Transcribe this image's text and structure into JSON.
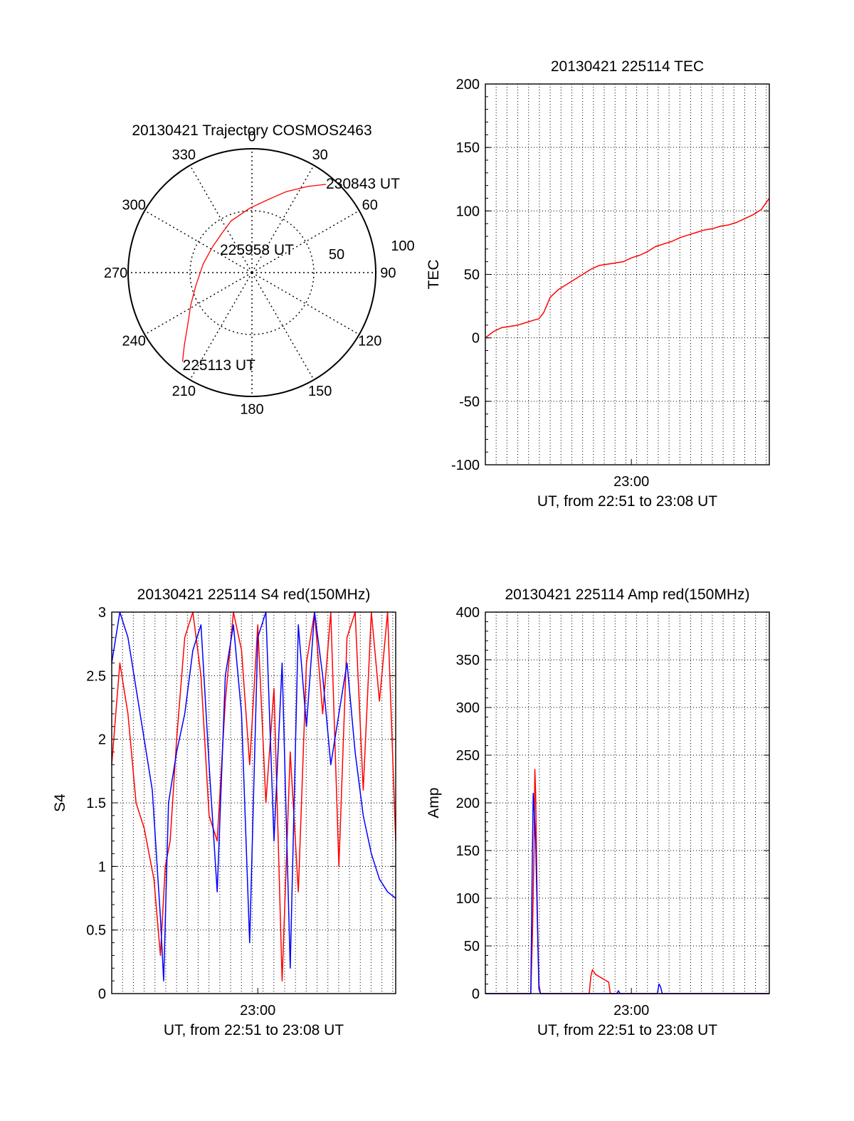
{
  "chart_data": [
    {
      "type": "polar",
      "title": "20130421 Trajectory COSMOS2463",
      "angle_labels": [
        "0",
        "30",
        "60",
        "90",
        "120",
        "150",
        "180",
        "210",
        "240",
        "270",
        "300",
        "330"
      ],
      "ring_labels": [
        "50",
        "100"
      ],
      "ring_elevations": [
        50,
        100
      ],
      "track": {
        "color": "#ff0000",
        "points": [
          {
            "azimuth": 218,
            "radius": 91
          },
          {
            "azimuth": 223,
            "radius": 80
          },
          {
            "azimuth": 230,
            "radius": 68
          },
          {
            "azimuth": 242,
            "radius": 56
          },
          {
            "azimuth": 258,
            "radius": 46
          },
          {
            "azimuth": 280,
            "radius": 40
          },
          {
            "azimuth": 303,
            "radius": 38
          },
          {
            "azimuth": 323,
            "radius": 40
          },
          {
            "azimuth": 338,
            "radius": 45
          },
          {
            "azimuth": 358,
            "radius": 52
          },
          {
            "azimuth": 12,
            "radius": 60
          },
          {
            "azimuth": 23,
            "radius": 71
          },
          {
            "azimuth": 33,
            "radius": 83
          },
          {
            "azimuth": 40,
            "radius": 93
          }
        ]
      },
      "annotations": [
        {
          "text": "230843 UT",
          "azimuth": 40,
          "radius": 93
        },
        {
          "text": "225958 UT",
          "azimuth": 350,
          "radius": 0
        },
        {
          "text": "225113 UT",
          "azimuth": 218,
          "radius": 91
        }
      ]
    },
    {
      "type": "line",
      "title": "20130421 225114 TEC",
      "xlabel": "UT, from 22:51 to 23:08 UT",
      "ylabel": "TEC",
      "xlim_minutes": [
        0,
        17.5
      ],
      "x_ticks": [
        {
          "label": "23:00",
          "value": 9
        }
      ],
      "ylim": [
        -100,
        200
      ],
      "y_ticks": [
        "-100",
        "-50",
        "0",
        "50",
        "100",
        "150",
        "200"
      ],
      "grid": true,
      "series": [
        {
          "color": "#ff0000",
          "x": [
            0,
            0.5,
            1,
            1.5,
            2,
            2.5,
            3,
            3.3,
            3.6,
            4,
            4.5,
            5,
            5.5,
            6,
            6.5,
            7,
            7.5,
            8,
            8.5,
            9,
            9.5,
            10,
            10.5,
            11,
            11.5,
            12,
            12.5,
            13,
            13.5,
            14,
            14.5,
            15,
            15.5,
            16,
            16.5,
            17,
            17.5
          ],
          "y": [
            0,
            5,
            8,
            9,
            10,
            12,
            14,
            15,
            20,
            32,
            38,
            42,
            46,
            50,
            54,
            57,
            58,
            59,
            60,
            63,
            65,
            68,
            72,
            74,
            76,
            79,
            81,
            83,
            85,
            86,
            88,
            89,
            91,
            94,
            97,
            101,
            110
          ]
        }
      ]
    },
    {
      "type": "line",
      "title": "20130421 225114 S4 red(150MHz)",
      "xlabel": "UT, from 22:51 to 23:08 UT",
      "ylabel": "S4",
      "xlim_minutes": [
        0,
        17.5
      ],
      "x_ticks": [
        {
          "label": "23:00",
          "value": 9
        }
      ],
      "ylim": [
        0,
        3
      ],
      "y_ticks": [
        "0",
        "0.5",
        "1",
        "1.5",
        "2",
        "2.5",
        "3"
      ],
      "grid": true,
      "series": [
        {
          "color": "#ff0000",
          "x": [
            0,
            0.5,
            1,
            1.5,
            2,
            2.3,
            2.6,
            3,
            3.3,
            3.6,
            4,
            4.5,
            5,
            5.5,
            6,
            6.5,
            7,
            7.5,
            8,
            8.5,
            9,
            9.5,
            10,
            10.5,
            11,
            11.5,
            12,
            12.5,
            13,
            13.5,
            14,
            14.5,
            15,
            15.5,
            16,
            16.5,
            17,
            17.5
          ],
          "y": [
            1.8,
            2.6,
            2.2,
            1.5,
            1.3,
            1.1,
            0.9,
            0.3,
            1.0,
            1.2,
            2.0,
            2.8,
            3.0,
            2.5,
            1.4,
            1.2,
            2.3,
            3.0,
            2.7,
            1.8,
            2.9,
            1.5,
            2.4,
            0.1,
            1.9,
            0.8,
            2.6,
            3.0,
            2.2,
            3.0,
            1.0,
            2.8,
            3.0,
            1.6,
            3.0,
            2.3,
            3.0,
            1.2
          ]
        },
        {
          "color": "#0000ff",
          "x": [
            0,
            0.5,
            1,
            1.5,
            2,
            2.5,
            3,
            3.2,
            3.5,
            4,
            4.5,
            5,
            5.5,
            6,
            6.5,
            7,
            7.5,
            8,
            8.5,
            9,
            9.5,
            10,
            10.5,
            11,
            11.5,
            12,
            12.5,
            13,
            13.5,
            14,
            14.5,
            15,
            15.5,
            16,
            16.5,
            17,
            17.5
          ],
          "y": [
            2.6,
            3.0,
            2.8,
            2.4,
            2.0,
            1.6,
            0.6,
            0.1,
            1.5,
            1.9,
            2.2,
            2.7,
            2.9,
            1.8,
            0.8,
            2.5,
            2.9,
            2.2,
            0.4,
            2.8,
            3.0,
            1.2,
            2.6,
            0.2,
            2.9,
            2.1,
            3.0,
            2.5,
            1.8,
            2.2,
            2.6,
            1.9,
            1.4,
            1.1,
            0.9,
            0.8,
            0.75
          ]
        }
      ]
    },
    {
      "type": "line",
      "title": "20130421 225114 Amp red(150MHz)",
      "xlabel": "UT, from 22:51 to 23:08 UT",
      "ylabel": "Amp",
      "xlim_minutes": [
        0,
        17.5
      ],
      "x_ticks": [
        {
          "label": "23:00",
          "value": 9
        }
      ],
      "ylim": [
        0,
        400
      ],
      "y_ticks": [
        "0",
        "50",
        "100",
        "150",
        "200",
        "250",
        "300",
        "350",
        "400"
      ],
      "grid": true,
      "series": [
        {
          "color": "#ff0000",
          "x": [
            0,
            2.8,
            2.9,
            3.0,
            3.05,
            3.1,
            3.2,
            3.3,
            3.4,
            6.4,
            6.5,
            6.6,
            6.8,
            7.0,
            7.2,
            7.4,
            7.6,
            7.7,
            8.0,
            17.5
          ],
          "y": [
            0,
            0,
            60,
            150,
            235,
            210,
            90,
            10,
            0,
            0,
            18,
            25,
            20,
            18,
            16,
            14,
            12,
            0,
            0,
            0
          ]
        },
        {
          "color": "#0000ff",
          "x": [
            0,
            2.8,
            2.9,
            2.95,
            3.0,
            3.1,
            3.2,
            3.3,
            3.4,
            8.1,
            8.2,
            8.3,
            10.6,
            10.7,
            10.8,
            10.9,
            17.5
          ],
          "y": [
            0,
            0,
            150,
            210,
            195,
            160,
            80,
            5,
            0,
            0,
            3,
            0,
            0,
            10,
            7,
            0,
            0
          ]
        }
      ]
    }
  ]
}
